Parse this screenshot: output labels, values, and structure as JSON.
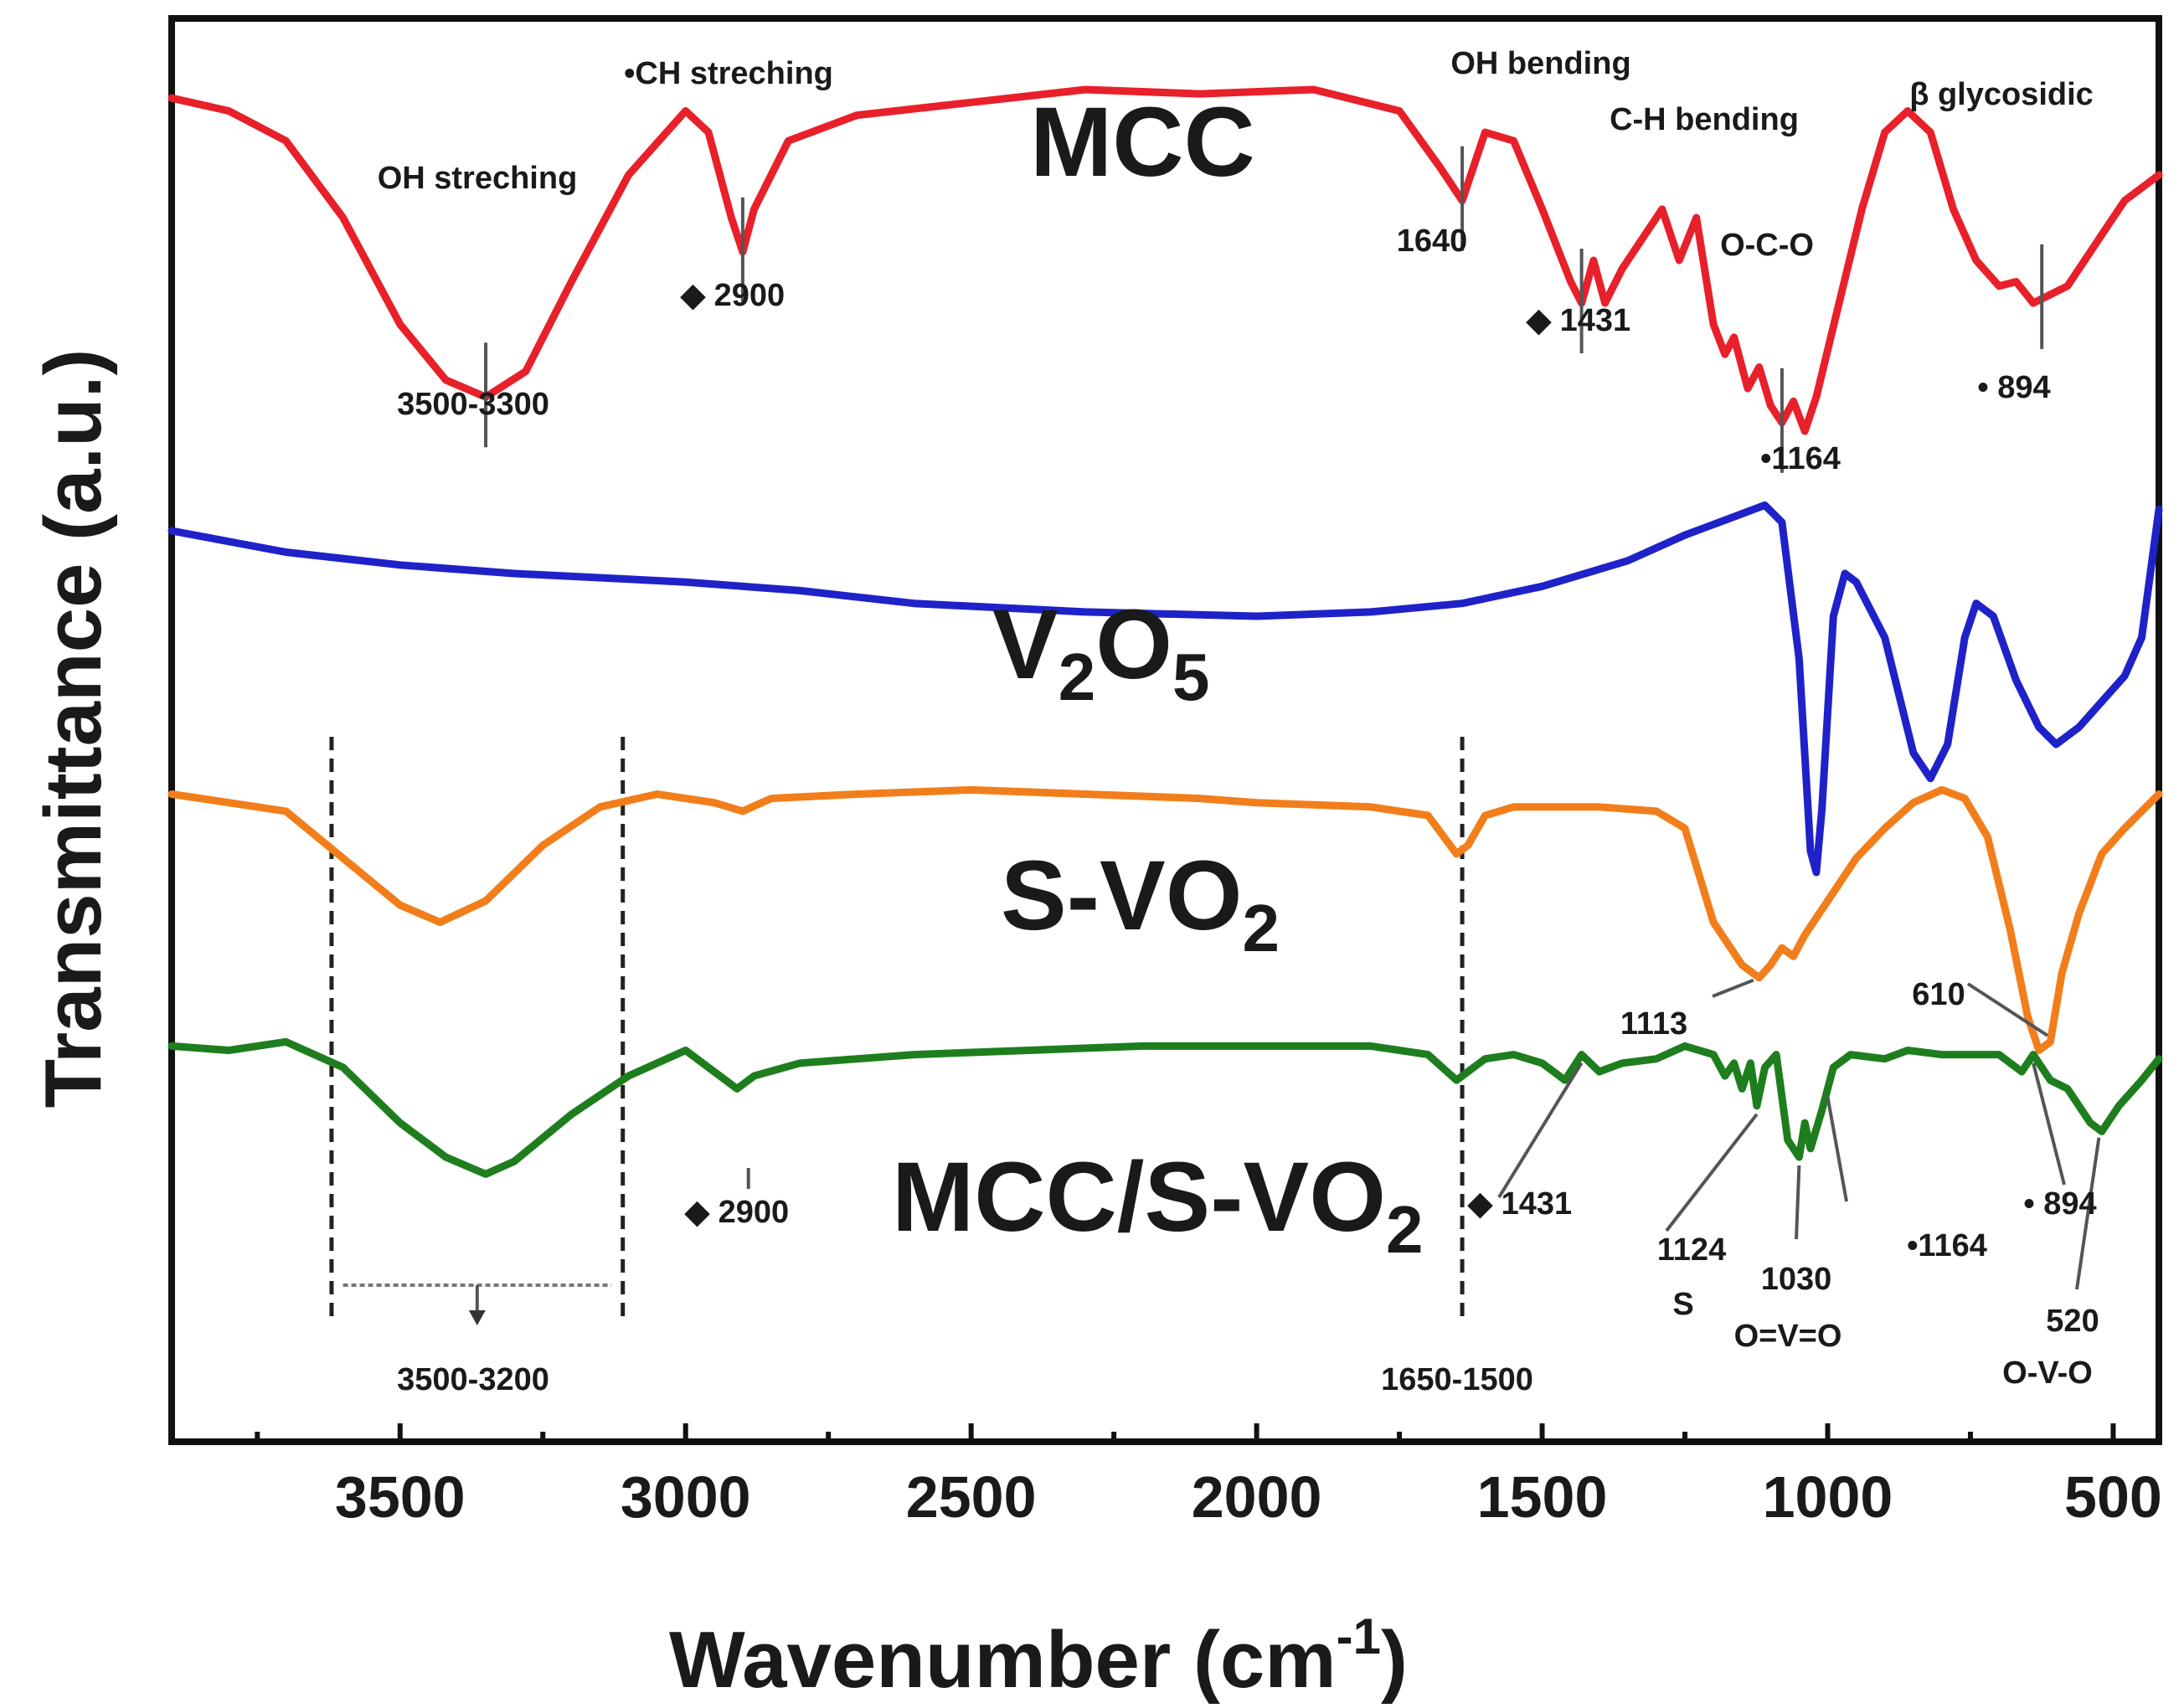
{
  "chart_data": {
    "type": "line",
    "title": "",
    "xlabel": "Wavenumber (cm",
    "xlabel_sup": "-1",
    "xlabel_close": ")",
    "ylabel": "Transmittance (a.u.)",
    "xlim": [
      3900,
      420
    ],
    "x_reversed": true,
    "grid": false,
    "legend": "none",
    "x_ticks": [
      {
        "value": 3500,
        "label": "3500"
      },
      {
        "value": 3000,
        "label": "3000"
      },
      {
        "value": 2500,
        "label": "2500"
      },
      {
        "value": 2000,
        "label": "2000"
      },
      {
        "value": 1500,
        "label": "1500"
      },
      {
        "value": 1000,
        "label": "1000"
      },
      {
        "value": 500,
        "label": "500"
      }
    ],
    "series": [
      {
        "name": "MCC",
        "name_parts": [
          {
            "text": "MCC",
            "sub": false
          }
        ],
        "color": "#e8202a",
        "baseline": 0.95,
        "scale": 0.3,
        "points": [
          [
            3900,
            0.02
          ],
          [
            3800,
            0.05
          ],
          [
            3700,
            0.12
          ],
          [
            3600,
            0.3
          ],
          [
            3500,
            0.55
          ],
          [
            3420,
            0.68
          ],
          [
            3350,
            0.72
          ],
          [
            3280,
            0.66
          ],
          [
            3200,
            0.45
          ],
          [
            3100,
            0.2
          ],
          [
            3000,
            0.05
          ],
          [
            2960,
            0.1
          ],
          [
            2920,
            0.3
          ],
          [
            2900,
            0.38
          ],
          [
            2880,
            0.28
          ],
          [
            2820,
            0.12
          ],
          [
            2700,
            0.06
          ],
          [
            2500,
            0.03
          ],
          [
            2300,
            0.0
          ],
          [
            2100,
            0.01
          ],
          [
            1900,
            0.0
          ],
          [
            1750,
            0.05
          ],
          [
            1680,
            0.18
          ],
          [
            1640,
            0.26
          ],
          [
            1600,
            0.1
          ],
          [
            1550,
            0.12
          ],
          [
            1500,
            0.28
          ],
          [
            1450,
            0.45
          ],
          [
            1431,
            0.5
          ],
          [
            1410,
            0.4
          ],
          [
            1390,
            0.5
          ],
          [
            1360,
            0.42
          ],
          [
            1320,
            0.34
          ],
          [
            1290,
            0.28
          ],
          [
            1260,
            0.4
          ],
          [
            1230,
            0.3
          ],
          [
            1200,
            0.55
          ],
          [
            1180,
            0.62
          ],
          [
            1164,
            0.58
          ],
          [
            1140,
            0.7
          ],
          [
            1120,
            0.65
          ],
          [
            1100,
            0.74
          ],
          [
            1080,
            0.78
          ],
          [
            1060,
            0.73
          ],
          [
            1040,
            0.8
          ],
          [
            1020,
            0.72
          ],
          [
            980,
            0.5
          ],
          [
            940,
            0.28
          ],
          [
            900,
            0.1
          ],
          [
            860,
            0.05
          ],
          [
            820,
            0.1
          ],
          [
            780,
            0.28
          ],
          [
            740,
            0.4
          ],
          [
            700,
            0.46
          ],
          [
            670,
            0.45
          ],
          [
            640,
            0.5
          ],
          [
            610,
            0.48
          ],
          [
            580,
            0.46
          ],
          [
            550,
            0.4
          ],
          [
            520,
            0.34
          ],
          [
            480,
            0.26
          ],
          [
            440,
            0.22
          ],
          [
            420,
            0.2
          ]
        ],
        "annotations": [
          {
            "label": "OH streching",
            "x": 3430,
            "pos": "above"
          },
          {
            "label": "3500-3300",
            "x": 3380,
            "pos": "below"
          },
          {
            "label": "•CH streching",
            "x": 2820,
            "pos": "above"
          },
          {
            "label": "◆ 2900",
            "x": 2900,
            "pos": "below"
          },
          {
            "label": "OH bending",
            "x": 1525,
            "pos": "above"
          },
          {
            "label": "1640",
            "x": 1680,
            "pos": "below"
          },
          {
            "label": "C-H bending",
            "x": 1330,
            "pos": "above"
          },
          {
            "label": "◆ 1431",
            "x": 1400,
            "pos": "below"
          },
          {
            "label": "O-C-O",
            "x": 1130,
            "pos": "above"
          },
          {
            "label": "•1164",
            "x": 1100,
            "pos": "below"
          },
          {
            "label": "β glycosidic",
            "x": 700,
            "pos": "above"
          },
          {
            "label": "• 894",
            "x": 600,
            "pos": "below"
          }
        ]
      },
      {
        "name": "V2O5",
        "name_parts": [
          {
            "text": "V",
            "sub": false
          },
          {
            "text": "2",
            "sub": true
          },
          {
            "text": "O",
            "sub": false
          },
          {
            "text": "5",
            "sub": true
          }
        ],
        "color": "#1f22c8",
        "baseline": 0.64,
        "scale": 0.3,
        "points": [
          [
            3900,
            0.0
          ],
          [
            3700,
            0.05
          ],
          [
            3500,
            0.08
          ],
          [
            3300,
            0.1
          ],
          [
            3000,
            0.12
          ],
          [
            2800,
            0.14
          ],
          [
            2600,
            0.17
          ],
          [
            2300,
            0.19
          ],
          [
            2000,
            0.2
          ],
          [
            1800,
            0.19
          ],
          [
            1640,
            0.17
          ],
          [
            1500,
            0.13
          ],
          [
            1350,
            0.07
          ],
          [
            1250,
            0.01
          ],
          [
            1150,
            -0.04
          ],
          [
            1110,
            -0.06
          ],
          [
            1080,
            -0.02
          ],
          [
            1050,
            0.3
          ],
          [
            1030,
            0.75
          ],
          [
            1020,
            0.8
          ],
          [
            1010,
            0.65
          ],
          [
            990,
            0.2
          ],
          [
            970,
            0.1
          ],
          [
            950,
            0.12
          ],
          [
            900,
            0.25
          ],
          [
            850,
            0.52
          ],
          [
            820,
            0.58
          ],
          [
            790,
            0.5
          ],
          [
            760,
            0.25
          ],
          [
            740,
            0.17
          ],
          [
            710,
            0.2
          ],
          [
            670,
            0.35
          ],
          [
            630,
            0.46
          ],
          [
            600,
            0.5
          ],
          [
            560,
            0.46
          ],
          [
            520,
            0.4
          ],
          [
            480,
            0.34
          ],
          [
            450,
            0.25
          ],
          [
            420,
            -0.05
          ]
        ],
        "annotations": []
      },
      {
        "name": "S-VO2",
        "name_parts": [
          {
            "text": "S-VO",
            "sub": false
          },
          {
            "text": "2",
            "sub": true
          }
        ],
        "color": "#f27e1b",
        "baseline": 0.455,
        "scale": 0.3,
        "points": [
          [
            3900,
            0.0
          ],
          [
            3800,
            0.02
          ],
          [
            3700,
            0.04
          ],
          [
            3600,
            0.15
          ],
          [
            3500,
            0.26
          ],
          [
            3430,
            0.3
          ],
          [
            3350,
            0.25
          ],
          [
            3250,
            0.12
          ],
          [
            3150,
            0.03
          ],
          [
            3050,
            0.0
          ],
          [
            2950,
            0.02
          ],
          [
            2900,
            0.04
          ],
          [
            2850,
            0.01
          ],
          [
            2700,
            0.0
          ],
          [
            2500,
            -0.01
          ],
          [
            2300,
            0.0
          ],
          [
            2100,
            0.01
          ],
          [
            2000,
            0.02
          ],
          [
            1800,
            0.03
          ],
          [
            1700,
            0.05
          ],
          [
            1650,
            0.14
          ],
          [
            1630,
            0.12
          ],
          [
            1600,
            0.05
          ],
          [
            1550,
            0.03
          ],
          [
            1500,
            0.03
          ],
          [
            1400,
            0.03
          ],
          [
            1300,
            0.04
          ],
          [
            1250,
            0.08
          ],
          [
            1200,
            0.3
          ],
          [
            1150,
            0.4
          ],
          [
            1120,
            0.43
          ],
          [
            1100,
            0.4
          ],
          [
            1080,
            0.36
          ],
          [
            1060,
            0.38
          ],
          [
            1040,
            0.33
          ],
          [
            1000,
            0.25
          ],
          [
            950,
            0.15
          ],
          [
            900,
            0.08
          ],
          [
            850,
            0.02
          ],
          [
            800,
            -0.01
          ],
          [
            760,
            0.01
          ],
          [
            720,
            0.1
          ],
          [
            680,
            0.32
          ],
          [
            650,
            0.52
          ],
          [
            630,
            0.6
          ],
          [
            610,
            0.58
          ],
          [
            590,
            0.42
          ],
          [
            560,
            0.28
          ],
          [
            520,
            0.14
          ],
          [
            480,
            0.08
          ],
          [
            450,
            0.04
          ],
          [
            420,
            0.0
          ]
        ],
        "annotations": [
          {
            "label": "1113",
            "x": 1130,
            "pos": "below"
          },
          {
            "label": "610",
            "x": 610,
            "pos": "left"
          }
        ]
      },
      {
        "name": "MCC/S-VO2",
        "name_parts": [
          {
            "text": "MCC/S-VO",
            "sub": false
          },
          {
            "text": "2",
            "sub": true
          }
        ],
        "color": "#1e7e1e",
        "baseline": 0.278,
        "scale": 0.3,
        "points": [
          [
            3900,
            0.0
          ],
          [
            3800,
            0.01
          ],
          [
            3700,
            -0.01
          ],
          [
            3600,
            0.05
          ],
          [
            3500,
            0.18
          ],
          [
            3420,
            0.26
          ],
          [
            3350,
            0.3
          ],
          [
            3300,
            0.27
          ],
          [
            3200,
            0.16
          ],
          [
            3100,
            0.07
          ],
          [
            3000,
            0.01
          ],
          [
            2950,
            0.06
          ],
          [
            2910,
            0.1
          ],
          [
            2880,
            0.07
          ],
          [
            2800,
            0.04
          ],
          [
            2600,
            0.02
          ],
          [
            2400,
            0.01
          ],
          [
            2200,
            0.0
          ],
          [
            2000,
            0.0
          ],
          [
            1800,
            0.0
          ],
          [
            1700,
            0.02
          ],
          [
            1650,
            0.08
          ],
          [
            1600,
            0.03
          ],
          [
            1550,
            0.02
          ],
          [
            1500,
            0.04
          ],
          [
            1460,
            0.08
          ],
          [
            1431,
            0.02
          ],
          [
            1400,
            0.06
          ],
          [
            1360,
            0.04
          ],
          [
            1300,
            0.03
          ],
          [
            1250,
            0.0
          ],
          [
            1200,
            0.02
          ],
          [
            1180,
            0.07
          ],
          [
            1164,
            0.04
          ],
          [
            1150,
            0.1
          ],
          [
            1135,
            0.04
          ],
          [
            1124,
            0.14
          ],
          [
            1110,
            0.05
          ],
          [
            1090,
            0.02
          ],
          [
            1070,
            0.22
          ],
          [
            1050,
            0.26
          ],
          [
            1040,
            0.18
          ],
          [
            1030,
            0.24
          ],
          [
            1010,
            0.15
          ],
          [
            990,
            0.05
          ],
          [
            960,
            0.02
          ],
          [
            900,
            0.03
          ],
          [
            860,
            0.01
          ],
          [
            800,
            0.02
          ],
          [
            700,
            0.02
          ],
          [
            660,
            0.06
          ],
          [
            640,
            0.02
          ],
          [
            610,
            0.08
          ],
          [
            580,
            0.1
          ],
          [
            540,
            0.18
          ],
          [
            520,
            0.2
          ],
          [
            490,
            0.14
          ],
          [
            450,
            0.08
          ],
          [
            420,
            0.03
          ]
        ],
        "annotations": [
          {
            "label": "◆ 2900",
            "x": 2880,
            "pos": "below"
          },
          {
            "label": "◆ 1431",
            "x": 1500,
            "pos": "below"
          },
          {
            "label": "1124",
            "x": 1230,
            "pos": "below"
          },
          {
            "label": "S",
            "x": 1210,
            "pos": "below2"
          },
          {
            "label": "1030",
            "x": 1050,
            "pos": "below"
          },
          {
            "label": "O=V=O",
            "x": 1020,
            "pos": "below2"
          },
          {
            "label": "•1164",
            "x": 900,
            "pos": "below"
          },
          {
            "label": "• 894",
            "x": 610,
            "pos": "below"
          },
          {
            "label": "520",
            "x": 530,
            "pos": "below"
          },
          {
            "label": "O-V-O",
            "x": 520,
            "pos": "below2"
          },
          {
            "label": "3500-3200",
            "x": 3370,
            "pos": "axis"
          },
          {
            "label": "1650-1500",
            "x": 1575,
            "pos": "axis"
          }
        ]
      }
    ]
  }
}
